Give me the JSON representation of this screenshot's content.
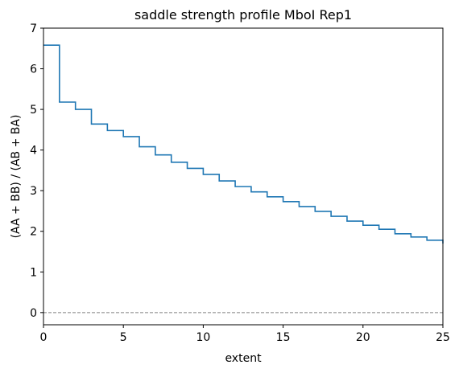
{
  "chart_data": {
    "type": "line",
    "title": "saddle strength profile MboI Rep1",
    "xlabel": "extent",
    "ylabel": "(AA + BB) / (AB + BA)",
    "xlim": [
      0,
      25
    ],
    "ylim": [
      -0.3,
      7
    ],
    "xticks": [
      0,
      5,
      10,
      15,
      20,
      25
    ],
    "yticks": [
      0,
      1,
      2,
      3,
      4,
      5,
      6,
      7
    ],
    "step": "post",
    "grid": false,
    "series": [
      {
        "color": "#1f77b4",
        "x": [
          0,
          1,
          2,
          3,
          4,
          5,
          6,
          7,
          8,
          9,
          10,
          11,
          12,
          13,
          14,
          15,
          16,
          17,
          18,
          19,
          20,
          21,
          22,
          23,
          24,
          25
        ],
        "y": [
          6.58,
          5.18,
          5.0,
          4.64,
          4.48,
          4.33,
          4.08,
          3.88,
          3.7,
          3.55,
          3.4,
          3.24,
          3.1,
          2.97,
          2.85,
          2.73,
          2.61,
          2.49,
          2.37,
          2.25,
          2.15,
          2.05,
          1.94,
          1.86,
          1.78,
          1.7
        ]
      }
    ],
    "reference_line": {
      "y": 0,
      "style": "dashed",
      "color": "#808080"
    }
  }
}
